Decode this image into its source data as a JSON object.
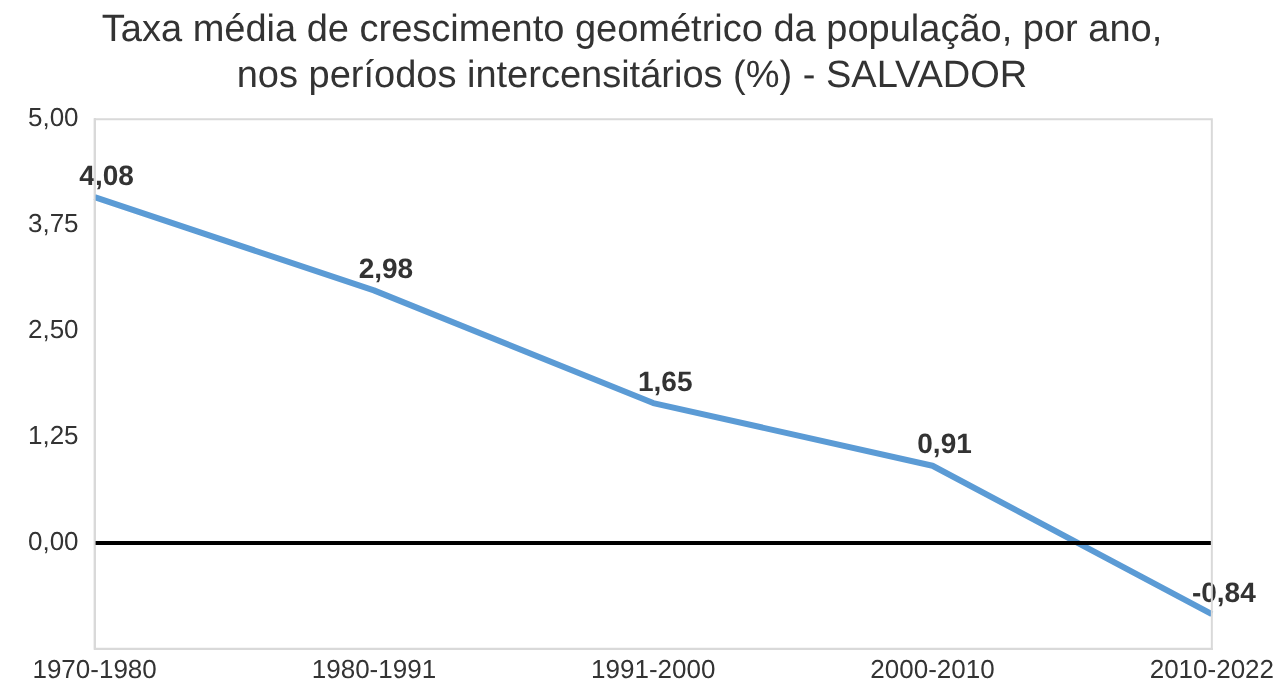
{
  "chart_data": {
    "type": "line",
    "title": [
      "Taxa média de crescimento geométrico da população, por ano,",
      "nos períodos intercensitários (%) - SALVADOR"
    ],
    "categories": [
      "1970-1980",
      "1980-1991",
      "1991-2000",
      "2000-2010",
      "2010-2022"
    ],
    "series": [
      {
        "color": "#5b9bd5",
        "values": [
          4.08,
          2.98,
          1.65,
          0.91,
          -0.84
        ],
        "value_labels": [
          "4,08",
          "2,98",
          "1,65",
          "0,91",
          "-0,84"
        ]
      }
    ],
    "ylim": [
      -1.25,
      5
    ],
    "yticks": [
      {
        "value": -1.25,
        "label": null
      },
      {
        "value": 0,
        "label": "0,00"
      },
      {
        "value": 1.25,
        "label": "1,25"
      },
      {
        "value": 2.5,
        "label": "2,50"
      },
      {
        "value": 3.75,
        "label": "3,75"
      },
      {
        "value": 5,
        "label": "5,00"
      }
    ],
    "grid": false,
    "legend": false,
    "marker": "none",
    "line_style": "solid",
    "ref_lines": [
      {
        "axis": "y",
        "value": 0,
        "color": "#000000"
      }
    ]
  }
}
